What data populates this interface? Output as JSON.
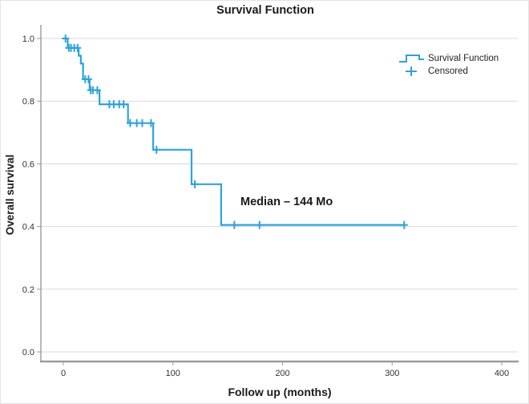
{
  "title": "Survival Function",
  "y_axis": {
    "label": "Overall survival",
    "tick_labels": [
      "1.0",
      "0.8",
      "0.6",
      "0.4",
      "0.2",
      "0.0"
    ]
  },
  "x_axis": {
    "label": "Follow up (months)",
    "tick_labels": [
      "0",
      "100",
      "200",
      "300",
      "400"
    ]
  },
  "legend": {
    "items": [
      {
        "label": "Survival Function",
        "symbol": "step-line-icon"
      },
      {
        "label": "Censored",
        "symbol": "plus-icon"
      }
    ]
  },
  "annotation": {
    "text": "Median – 144 Mo"
  },
  "colors": {
    "curve": "#2EA3DB",
    "gridline": "#D8D8D8",
    "axis": "#9B9B9B",
    "text": "#1A1A1A",
    "tick_text": "#333333"
  },
  "chart_data": {
    "type": "line",
    "subtype": "kaplan-meier-step",
    "title": "Survival Function",
    "xlabel": "Follow up (months)",
    "ylabel": "Overall survival",
    "xlim": [
      -15,
      415
    ],
    "ylim": [
      -0.03,
      1.05
    ],
    "x_ticks": [
      0,
      100,
      200,
      300,
      400
    ],
    "y_ticks": [
      1.0,
      0.8,
      0.6,
      0.4,
      0.2,
      0.0
    ],
    "grid": "horizontal",
    "legend_position": "top-right-inside",
    "series": [
      {
        "name": "Survival Function",
        "step_points": [
          [
            0,
            1.0
          ],
          [
            4,
            0.97
          ],
          [
            14,
            0.945
          ],
          [
            16,
            0.92
          ],
          [
            18,
            0.87
          ],
          [
            24,
            0.835
          ],
          [
            33,
            0.79
          ],
          [
            59,
            0.73
          ],
          [
            82,
            0.645
          ],
          [
            117,
            0.535
          ],
          [
            144,
            0.405
          ],
          [
            311,
            0.405
          ]
        ]
      }
    ],
    "censored_points": [
      [
        2,
        1.0
      ],
      [
        5,
        0.97
      ],
      [
        7,
        0.97
      ],
      [
        10,
        0.97
      ],
      [
        13,
        0.97
      ],
      [
        20,
        0.87
      ],
      [
        23,
        0.87
      ],
      [
        25,
        0.835
      ],
      [
        27,
        0.835
      ],
      [
        31,
        0.835
      ],
      [
        42,
        0.79
      ],
      [
        46,
        0.79
      ],
      [
        51,
        0.79
      ],
      [
        55,
        0.79
      ],
      [
        61,
        0.73
      ],
      [
        67,
        0.73
      ],
      [
        72,
        0.73
      ],
      [
        80,
        0.73
      ],
      [
        85,
        0.645
      ],
      [
        120,
        0.535
      ],
      [
        156,
        0.405
      ],
      [
        179,
        0.405
      ],
      [
        311,
        0.405
      ]
    ],
    "annotations": [
      {
        "text": "Median – 144 Mo",
        "x": 161,
        "y": 0.475
      }
    ],
    "median_months": 144
  }
}
